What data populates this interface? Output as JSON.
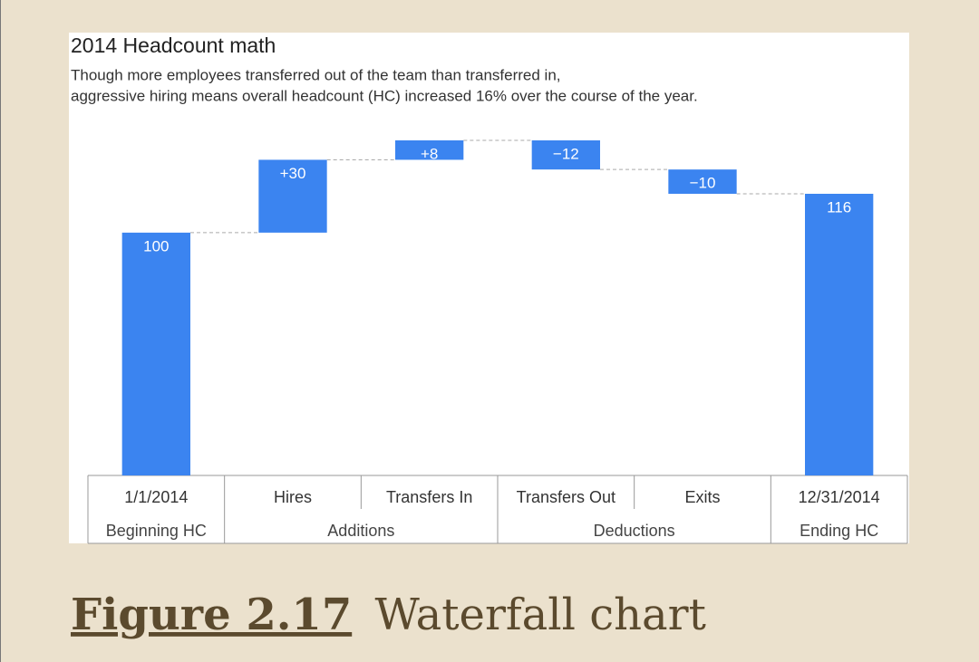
{
  "chart_data": {
    "type": "waterfall",
    "title": "2014 Headcount math",
    "subtitle": [
      "Though more employees transferred out of the team than transferred in,",
      "aggressive hiring means overall headcount (HC) increased 16% over the course of the year."
    ],
    "groups": [
      {
        "label": "Beginning HC",
        "categories": [
          "1/1/2014"
        ]
      },
      {
        "label": "Additions",
        "categories": [
          "Hires",
          "Transfers In"
        ]
      },
      {
        "label": "Deductions",
        "categories": [
          "Transfers Out",
          "Exits"
        ]
      },
      {
        "label": "Ending HC",
        "categories": [
          "12/31/2014"
        ]
      }
    ],
    "values": [
      100,
      30,
      8,
      -12,
      -10,
      116
    ],
    "value_labels": [
      "100",
      "+30",
      "+8",
      "−12",
      "−10",
      "116"
    ],
    "color": "#3b84f0"
  },
  "figure": {
    "label": "Figure 2.17",
    "text": "Waterfall chart"
  }
}
